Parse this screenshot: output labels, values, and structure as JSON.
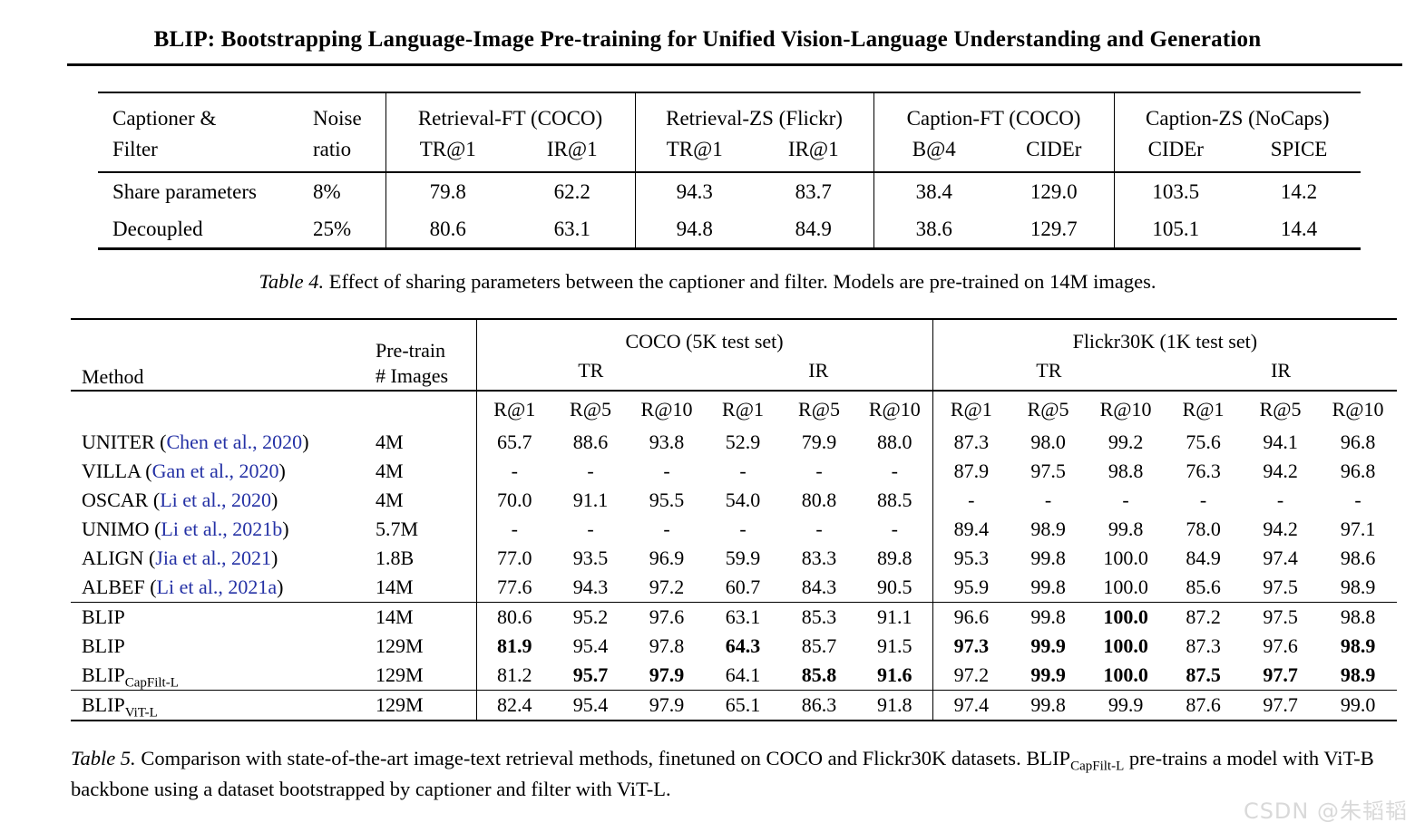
{
  "title": "BLIP: Bootstrapping Language-Image Pre-training for Unified Vision-Language Understanding and Generation",
  "colors": {
    "citation_blue": "#2431a5",
    "watermark_gray": "#d9d9d9"
  },
  "table4": {
    "header": {
      "col1_line1": "Captioner &",
      "col1_line2": "Filter",
      "col2_line1": "Noise",
      "col2_line2": "ratio",
      "groups": [
        {
          "label": "Retrieval-FT (COCO)",
          "sub1": "TR@1",
          "sub2": "IR@1"
        },
        {
          "label": "Retrieval-ZS (Flickr)",
          "sub1": "TR@1",
          "sub2": "IR@1"
        },
        {
          "label": "Caption-FT (COCO)",
          "sub1": "B@4",
          "sub2": "CIDEr"
        },
        {
          "label": "Caption-ZS (NoCaps)",
          "sub1": "CIDEr",
          "sub2": "SPICE"
        }
      ]
    },
    "rows": [
      {
        "label": "Share parameters",
        "noise": "8%",
        "values": [
          "79.8",
          "62.2",
          "94.3",
          "83.7",
          "38.4",
          "129.0",
          "103.5",
          "14.2"
        ]
      },
      {
        "label": "Decoupled",
        "noise": "25%",
        "values": [
          "80.6",
          "63.1",
          "94.8",
          "84.9",
          "38.6",
          "129.7",
          "105.1",
          "14.4"
        ]
      }
    ],
    "caption": {
      "label": "Table 4.",
      "text": " Effect of sharing parameters between the captioner and filter. Models are pre-trained on 14M images."
    }
  },
  "table5": {
    "header": {
      "method": "Method",
      "pretrain_line1": "Pre-train",
      "pretrain_line2": "# Images",
      "coco": "COCO (5K test set)",
      "flickr": "Flickr30K (1K test set)",
      "tr": "TR",
      "ir": "IR",
      "sub": [
        "R@1",
        "R@5",
        "R@10",
        "R@1",
        "R@5",
        "R@10",
        "R@1",
        "R@5",
        "R@10",
        "R@1",
        "R@5",
        "R@10"
      ]
    },
    "groups": [
      {
        "rows": [
          {
            "method": {
              "name": "UNITER",
              "cite": "Chen et al., 2020"
            },
            "images": "4M",
            "cells": [
              "65.7",
              "88.6",
              "93.8",
              "52.9",
              "79.9",
              "88.0",
              "87.3",
              "98.0",
              "99.2",
              "75.6",
              "94.1",
              "96.8"
            ],
            "bold": []
          },
          {
            "method": {
              "name": "VILLA",
              "cite": "Gan et al., 2020"
            },
            "images": "4M",
            "cells": [
              "-",
              "-",
              "-",
              "-",
              "-",
              "-",
              "87.9",
              "97.5",
              "98.8",
              "76.3",
              "94.2",
              "96.8"
            ],
            "bold": []
          },
          {
            "method": {
              "name": "OSCAR",
              "cite": "Li et al., 2020"
            },
            "images": "4M",
            "cells": [
              "70.0",
              "91.1",
              "95.5",
              "54.0",
              "80.8",
              "88.5",
              "-",
              "-",
              "-",
              "-",
              "-",
              "-"
            ],
            "bold": []
          },
          {
            "method": {
              "name": "UNIMO",
              "cite": "Li et al., 2021b"
            },
            "images": "5.7M",
            "cells": [
              "-",
              "-",
              "-",
              "-",
              "-",
              "-",
              "89.4",
              "98.9",
              "99.8",
              "78.0",
              "94.2",
              "97.1"
            ],
            "bold": []
          },
          {
            "method": {
              "name": "ALIGN",
              "cite": "Jia et al., 2021"
            },
            "images": "1.8B",
            "cells": [
              "77.0",
              "93.5",
              "96.9",
              "59.9",
              "83.3",
              "89.8",
              "95.3",
              "99.8",
              "100.0",
              "84.9",
              "97.4",
              "98.6"
            ],
            "bold": []
          },
          {
            "method": {
              "name": "ALBEF",
              "cite": "Li et al., 2021a"
            },
            "images": "14M",
            "cells": [
              "77.6",
              "94.3",
              "97.2",
              "60.7",
              "84.3",
              "90.5",
              "95.9",
              "99.8",
              "100.0",
              "85.6",
              "97.5",
              "98.9"
            ],
            "bold": []
          }
        ]
      },
      {
        "rows": [
          {
            "method": {
              "name": "BLIP"
            },
            "images": "14M",
            "cells": [
              "80.6",
              "95.2",
              "97.6",
              "63.1",
              "85.3",
              "91.1",
              "96.6",
              "99.8",
              "100.0",
              "87.2",
              "97.5",
              "98.8"
            ],
            "bold": [
              8
            ]
          },
          {
            "method": {
              "name": "BLIP"
            },
            "images": "129M",
            "cells": [
              "81.9",
              "95.4",
              "97.8",
              "64.3",
              "85.7",
              "91.5",
              "97.3",
              "99.9",
              "100.0",
              "87.3",
              "97.6",
              "98.9"
            ],
            "bold": [
              0,
              3,
              6,
              7,
              8,
              11
            ]
          },
          {
            "method": {
              "name": "BLIP",
              "sub": "CapFilt-L"
            },
            "images": "129M",
            "cells": [
              "81.2",
              "95.7",
              "97.9",
              "64.1",
              "85.8",
              "91.6",
              "97.2",
              "99.9",
              "100.0",
              "87.5",
              "97.7",
              "98.9"
            ],
            "bold": [
              1,
              2,
              4,
              5,
              7,
              8,
              9,
              10,
              11
            ]
          }
        ]
      },
      {
        "rows": [
          {
            "method": {
              "name": "BLIP",
              "sub": "ViT-L"
            },
            "images": "129M",
            "cells": [
              "82.4",
              "95.4",
              "97.9",
              "65.1",
              "86.3",
              "91.8",
              "97.4",
              "99.8",
              "99.9",
              "87.6",
              "97.7",
              "99.0"
            ],
            "bold": []
          }
        ]
      }
    ],
    "caption": {
      "label": "Table 5.",
      "before": " Comparison with state-of-the-art image-text retrieval methods, finetuned on COCO and Flickr30K datasets. BLIP",
      "sub": "CapFilt-L",
      "after": " pre-trains a model with ViT-B backbone using a dataset bootstrapped by captioner and filter with ViT-L."
    }
  },
  "watermark": "CSDN @朱韬韬"
}
